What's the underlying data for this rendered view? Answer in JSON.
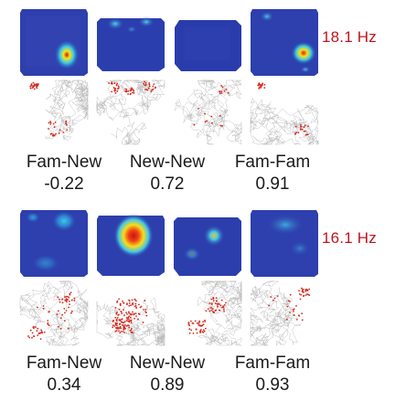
{
  "groups": [
    {
      "rate": "18.1 Hz",
      "comparisons": [
        {
          "label": "Fam-New",
          "value": "-0.22"
        },
        {
          "label": "New-New",
          "value": "0.72"
        },
        {
          "label": "Fam-Fam",
          "value": "0.91"
        }
      ]
    },
    {
      "rate": "16.1 Hz",
      "comparisons": [
        {
          "label": "Fam-New",
          "value": "0.34"
        },
        {
          "label": "New-New",
          "value": "0.89"
        },
        {
          "label": "Fam-Fam",
          "value": "0.93"
        }
      ]
    }
  ],
  "colors": {
    "map_base": "#2b3aa8",
    "map_high": "#e31a1c",
    "trajectory": "#b8b8b8",
    "spikes": "#d62a1e",
    "rate_text": "#c0141c"
  }
}
